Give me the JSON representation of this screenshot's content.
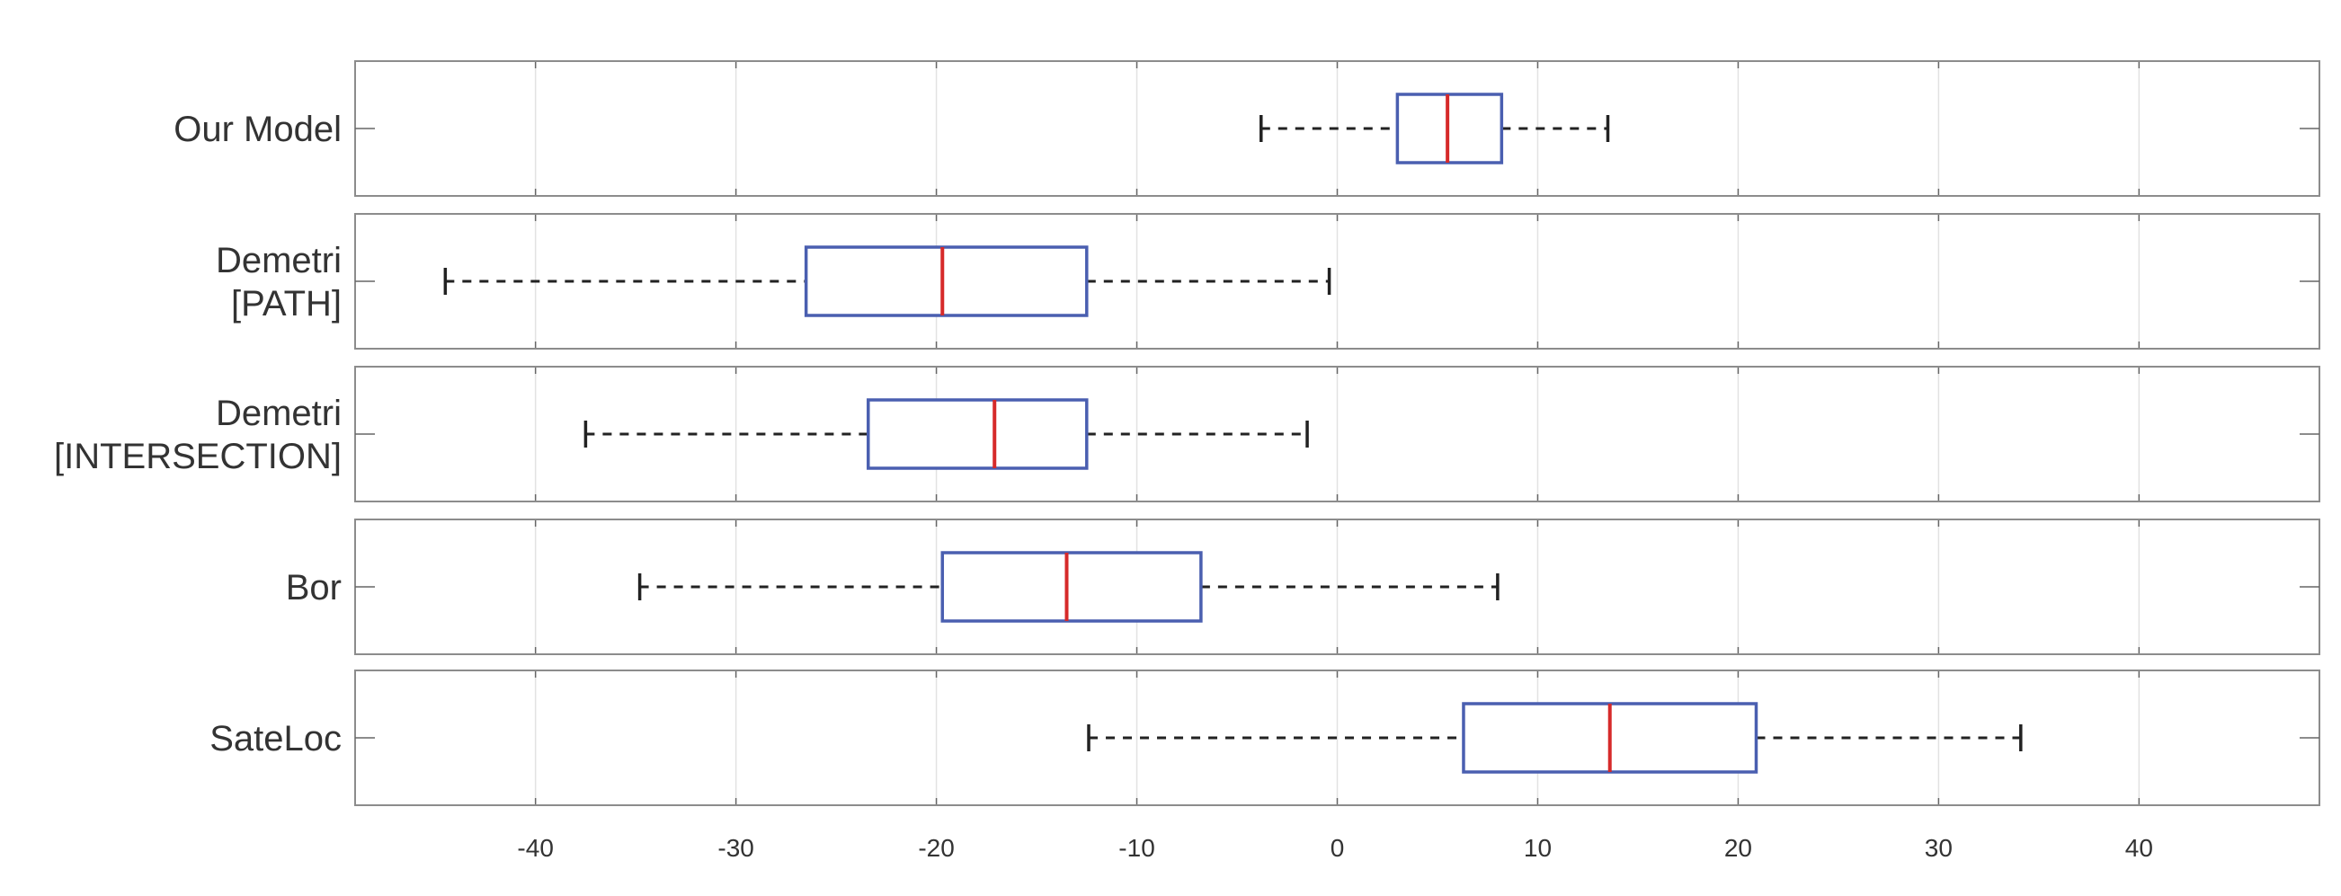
{
  "chart_data": {
    "type": "box",
    "orientation": "horizontal",
    "xlim": [
      -49,
      49
    ],
    "x_ticks": [
      -40,
      -30,
      -20,
      -10,
      0,
      10,
      20,
      30,
      40
    ],
    "x_tick_labels": [
      "-40",
      "-30",
      "-20",
      "-10",
      "0",
      "10",
      "20",
      "30",
      "40"
    ],
    "grid": true,
    "categories": [
      {
        "label_lines": [
          "Our Model"
        ],
        "whisker_low": -3.8,
        "q1": 3.0,
        "median": 5.5,
        "q3": 8.2,
        "whisker_high": 13.5
      },
      {
        "label_lines": [
          "Demetri",
          "[PATH]"
        ],
        "whisker_low": -44.5,
        "q1": -26.5,
        "median": -19.7,
        "q3": -12.5,
        "whisker_high": -0.4
      },
      {
        "label_lines": [
          "Demetri",
          "[INTERSECTION]"
        ],
        "whisker_low": -37.5,
        "q1": -23.4,
        "median": -17.1,
        "q3": -12.5,
        "whisker_high": -1.5
      },
      {
        "label_lines": [
          "Bor"
        ],
        "whisker_low": -34.8,
        "q1": -19.7,
        "median": -13.5,
        "q3": -6.8,
        "whisker_high": 8.0
      },
      {
        "label_lines": [
          "SateLoc"
        ],
        "whisker_low": -12.4,
        "q1": 6.3,
        "median": 13.6,
        "q3": 20.9,
        "whisker_high": 34.1
      }
    ],
    "colors": {
      "box": "#4a5fb0",
      "median": "#d62a2a",
      "whisker": "#222222",
      "grid": "#e2e2e2",
      "frame": "#8c8c8c"
    }
  }
}
